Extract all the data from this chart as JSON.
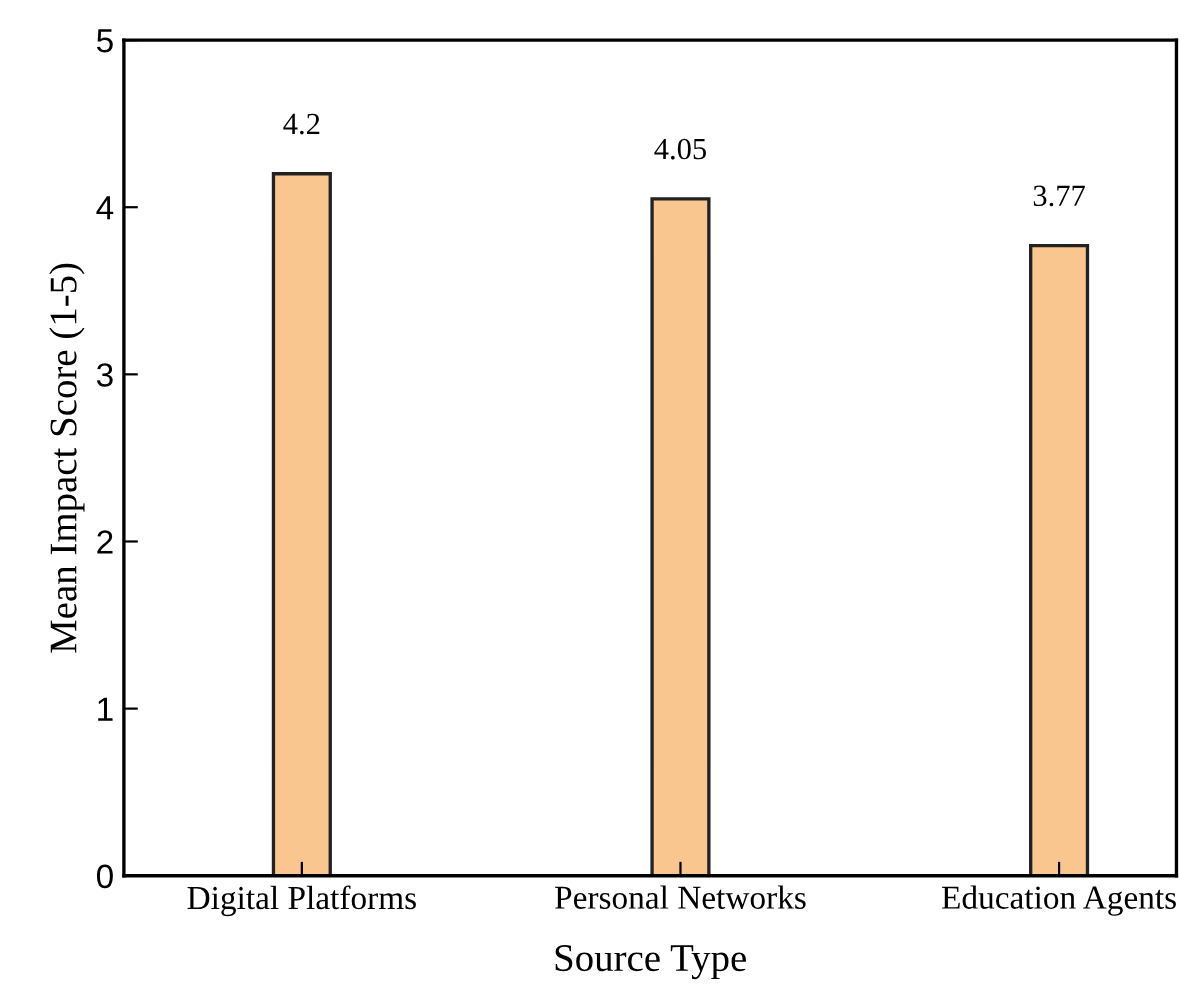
{
  "chart_data": {
    "type": "bar",
    "xlabel": "Source Type",
    "ylabel": "Mean Impact Score (1-5)",
    "categories": [
      "Digital Platforms",
      "Personal Networks",
      "Education Agents"
    ],
    "values": [
      4.2,
      4.05,
      3.77
    ],
    "color": "#fac690",
    "ylim": [
      0,
      5
    ],
    "yticks": [
      0,
      1,
      2,
      3,
      4,
      5
    ],
    "data_labels": true,
    "grid": false,
    "legend": false
  }
}
